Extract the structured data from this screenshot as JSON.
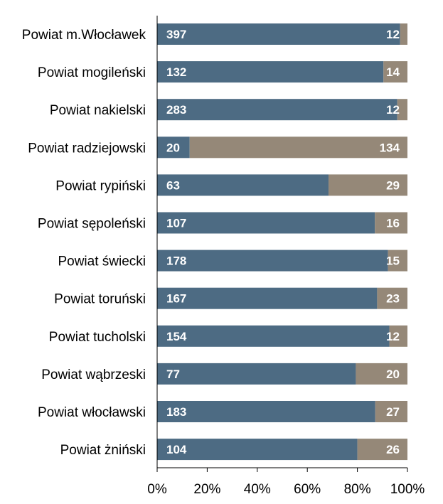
{
  "chart_data": {
    "type": "bar",
    "orientation": "horizontal",
    "stacked": "percent",
    "title": "",
    "xlabel": "",
    "ylabel": "",
    "xlim": [
      0,
      100
    ],
    "x_ticks": [
      "0%",
      "20%",
      "40%",
      "60%",
      "80%",
      "100%"
    ],
    "grid": false,
    "legend": "none",
    "categories": [
      "Powiat m.Włocławek",
      "Powiat mogileński",
      "Powiat nakielski",
      "Powiat radziejowski",
      "Powiat rypiński",
      "Powiat sępoleński",
      "Powiat świecki",
      "Powiat toruński",
      "Powiat tucholski",
      "Powiat wąbrzeski",
      "Powiat włocławski",
      "Powiat żniński"
    ],
    "series": [
      {
        "name": "series-1",
        "color": "#4d6b83",
        "values": [
          397,
          132,
          283,
          20,
          63,
          107,
          178,
          167,
          154,
          77,
          183,
          104
        ]
      },
      {
        "name": "series-2",
        "color": "#958878",
        "values": [
          12,
          14,
          12,
          134,
          29,
          16,
          15,
          23,
          12,
          20,
          27,
          26
        ]
      }
    ]
  }
}
